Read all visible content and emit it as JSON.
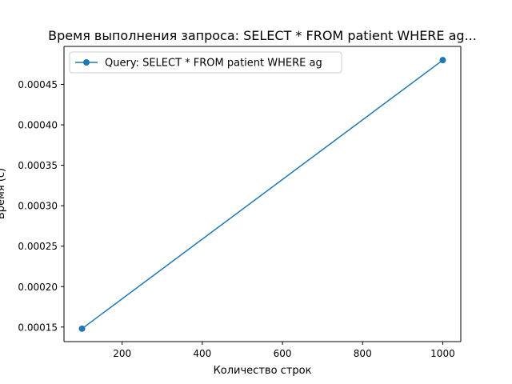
{
  "chart_data": {
    "type": "line",
    "title": "Время выполнения запроса: SELECT * FROM patient WHERE ag...",
    "xlabel": "Количество строк",
    "ylabel": "Время (с)",
    "xlim": [
      55,
      1045
    ],
    "ylim": [
      0.000132,
      0.000497
    ],
    "xticks": [
      200,
      400,
      600,
      800,
      1000
    ],
    "xtick_labels": [
      "200",
      "400",
      "600",
      "800",
      "1000"
    ],
    "yticks": [
      0.00015,
      0.0002,
      0.00025,
      0.0003,
      0.00035,
      0.0004,
      0.00045
    ],
    "ytick_labels": [
      "0.00015",
      "0.00020",
      "0.00025",
      "0.00030",
      "0.00035",
      "0.00040",
      "0.00045"
    ],
    "grid": false,
    "legend_position": "top-left",
    "series": [
      {
        "name": "Query: SELECT * FROM patient WHERE ag",
        "color": "#1f77b4",
        "marker": "circle",
        "x": [
          100,
          1000
        ],
        "y": [
          0.000148,
          0.00048
        ]
      }
    ]
  }
}
